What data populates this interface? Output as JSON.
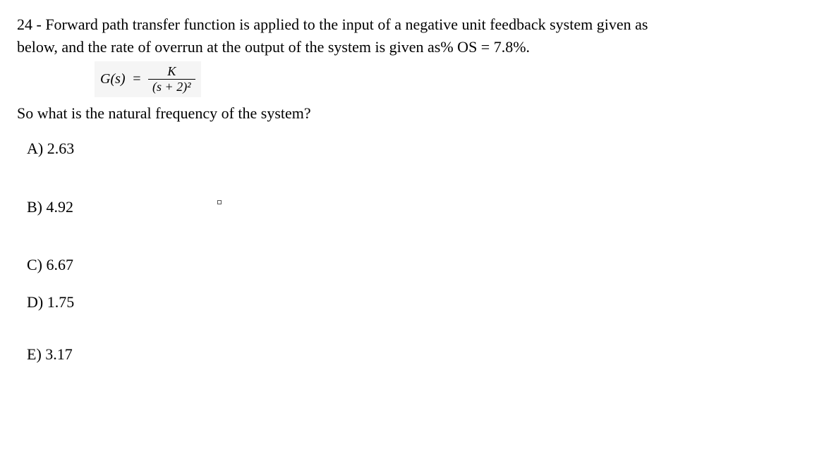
{
  "question": {
    "number": "24",
    "text_line1": "24 - Forward path transfer function is applied to the input of a negative unit feedback system given as",
    "text_line2": "below, and the rate of overrun at the output of the system is given as% OS = 7.8%.",
    "formula": {
      "lhs": "G(s)",
      "numerator": "K",
      "denominator": "(s + 2)²"
    },
    "followup": "So what is the natural frequency of the system?"
  },
  "options": {
    "a": "A) 2.63",
    "b": "B) 4.92",
    "c": "C) 6.67",
    "d": "D) 1.75",
    "e": "E) 3.17"
  },
  "style": {
    "font_family": "Times New Roman",
    "font_size_pt": 16,
    "text_color": "#000000",
    "background_color": "#ffffff",
    "formula_bg": "#f5f5f5"
  }
}
